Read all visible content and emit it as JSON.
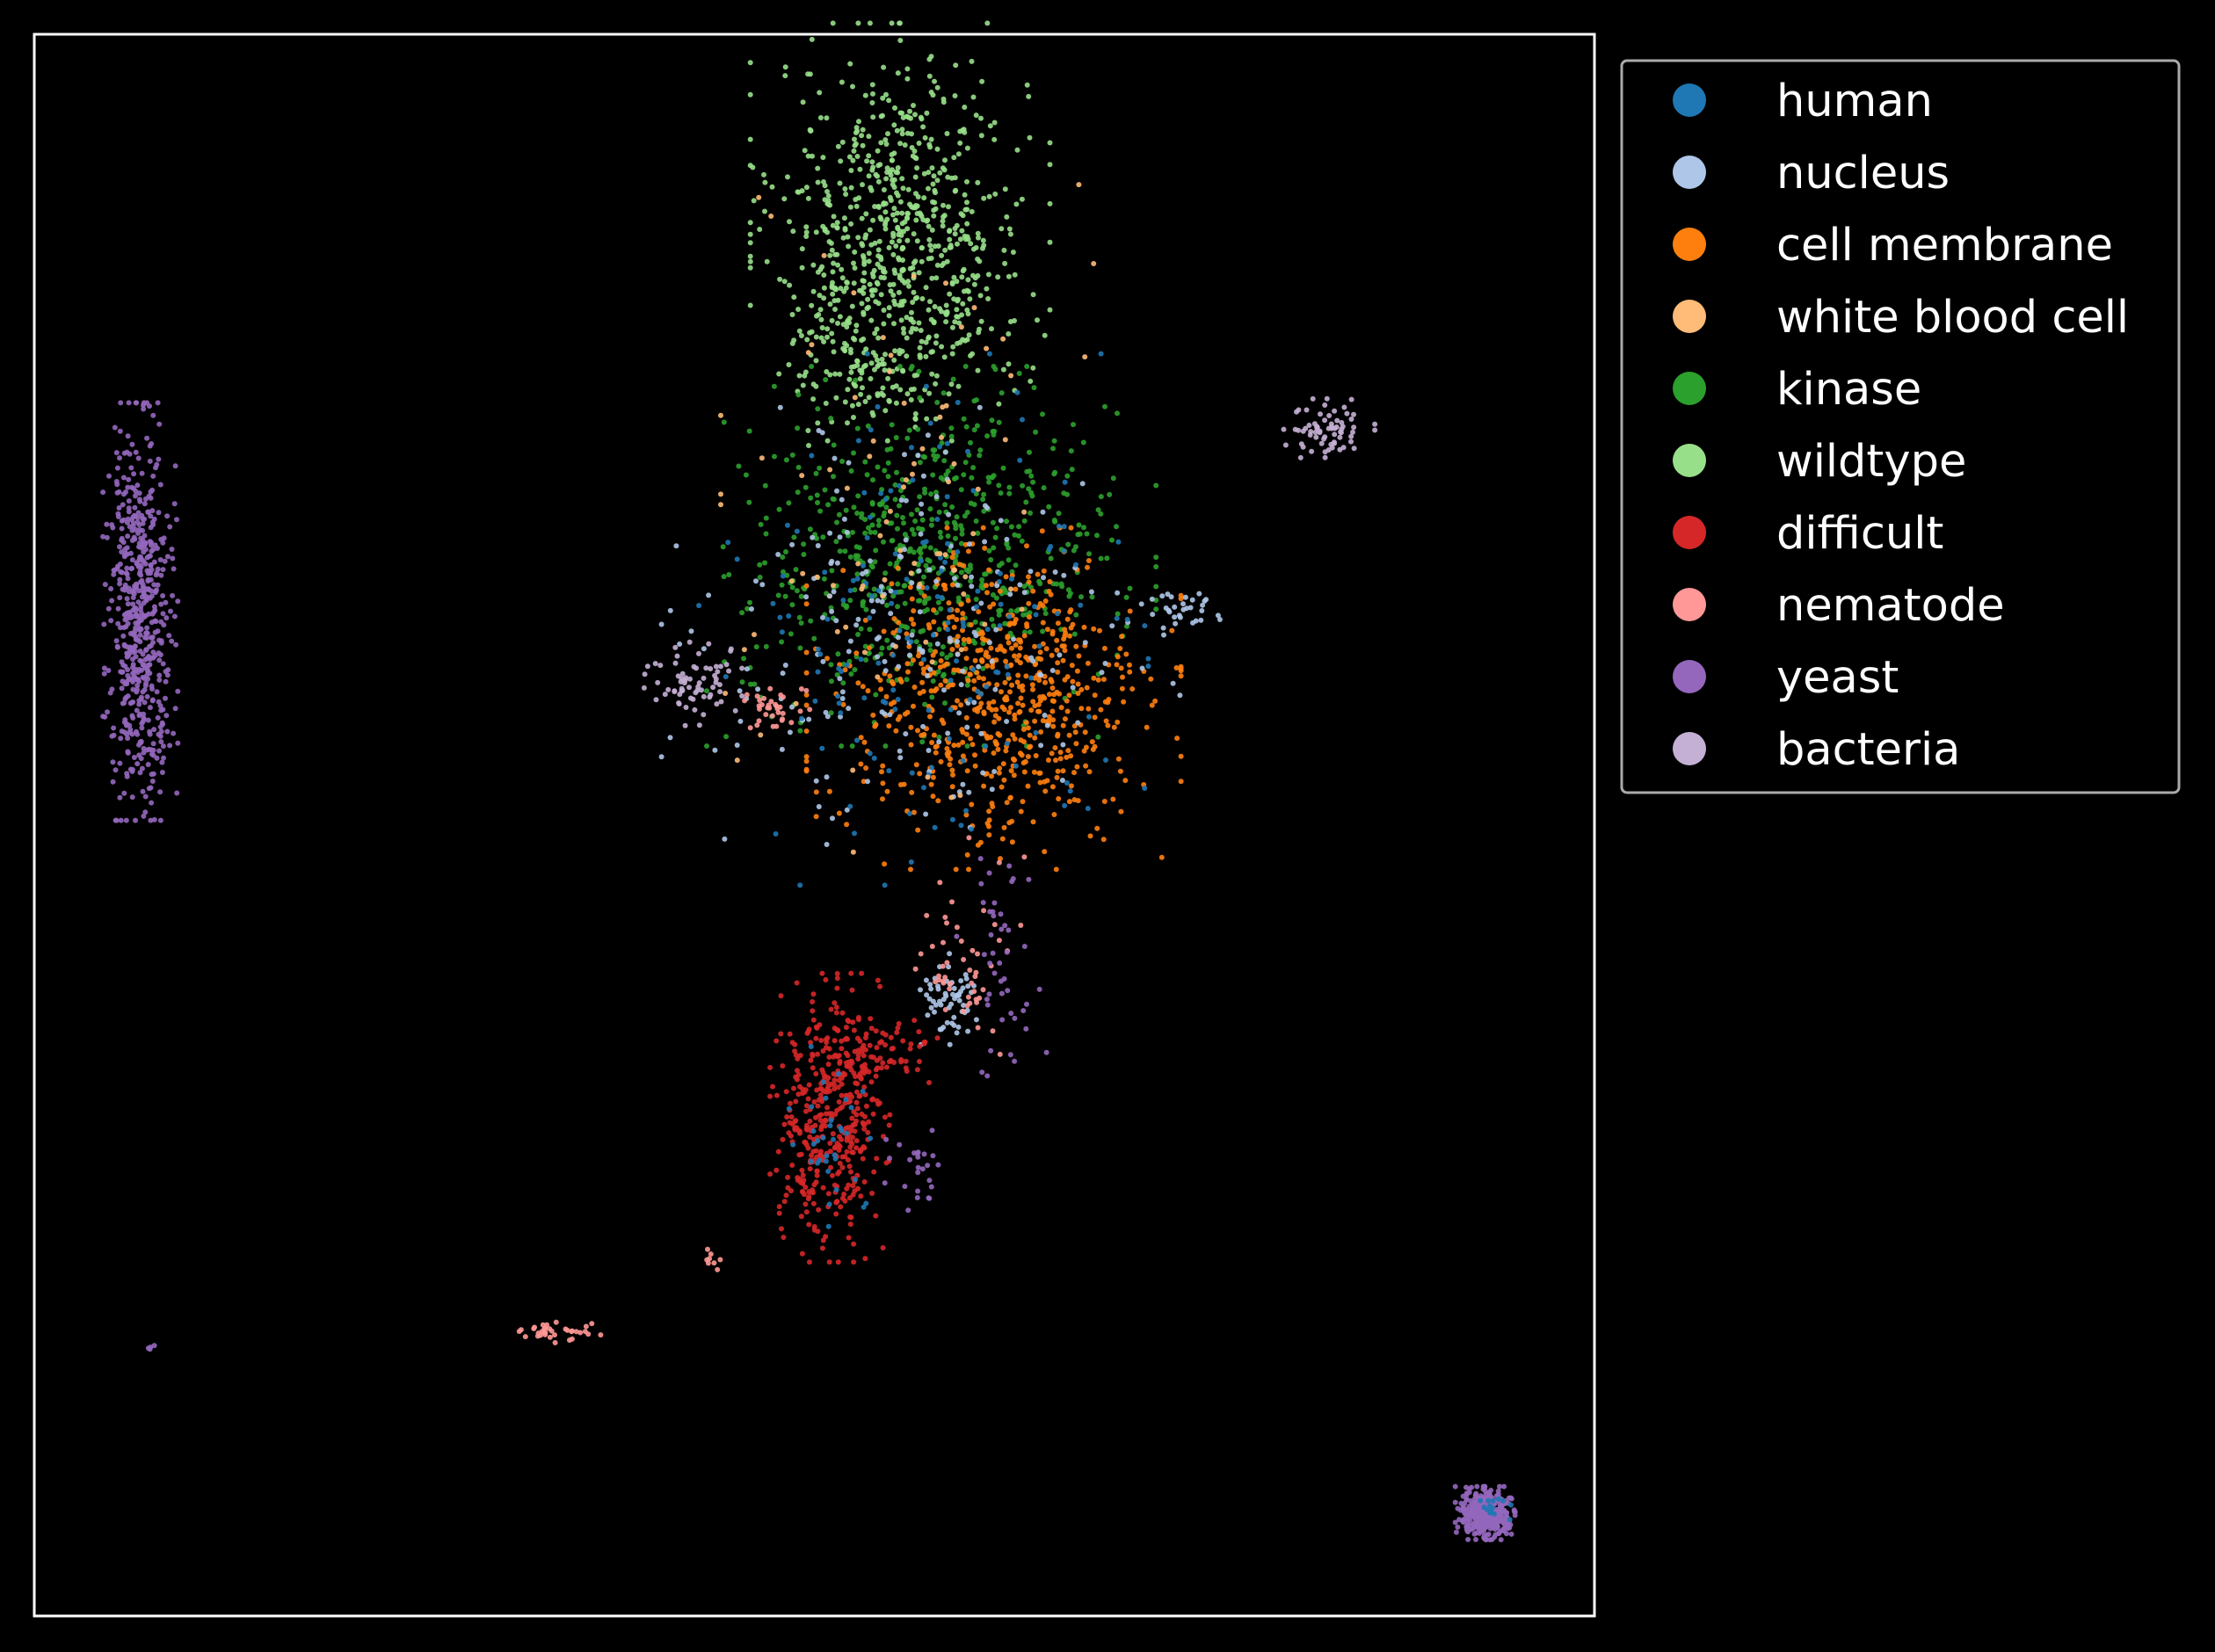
{
  "chart_data": {
    "type": "scatter",
    "title": "",
    "xlabel": "",
    "ylabel": "",
    "xlim": [
      0,
      100
    ],
    "ylim": [
      0,
      100
    ],
    "grid": false,
    "ticks": false,
    "background": "#000000",
    "frame_color": "#ffffff",
    "legend_placement": "outside-right-top",
    "series": [
      {
        "name": "human",
        "color": "#1f77b4"
      },
      {
        "name": "nucleus",
        "color": "#aec7e8"
      },
      {
        "name": "cell membrane",
        "color": "#ff7f0e"
      },
      {
        "name": "white blood cell",
        "color": "#ffbb78"
      },
      {
        "name": "kinase",
        "color": "#2ca02c"
      },
      {
        "name": "wildtype",
        "color": "#98df8a"
      },
      {
        "name": "difficult",
        "color": "#d62728"
      },
      {
        "name": "nematode",
        "color": "#ff9896"
      },
      {
        "name": "yeast",
        "color": "#9467bd"
      },
      {
        "name": "bacteria",
        "color": "#c5b0d5"
      }
    ],
    "clusters": [
      {
        "series": "wildtype",
        "cx": 55.5,
        "cy": 87.5,
        "sx": 4.0,
        "sy": 5.5,
        "n": 700
      },
      {
        "series": "wildtype",
        "cx": 53.5,
        "cy": 80.0,
        "sx": 2.5,
        "sy": 2.5,
        "n": 120
      },
      {
        "series": "kinase",
        "cx": 57.5,
        "cy": 67.0,
        "sx": 6.0,
        "sy": 5.0,
        "n": 650
      },
      {
        "series": "cell membrane",
        "cx": 61.5,
        "cy": 58.0,
        "sx": 5.0,
        "sy": 4.5,
        "n": 650
      },
      {
        "series": "nucleus",
        "cx": 57.0,
        "cy": 62.0,
        "sx": 7.0,
        "sy": 6.0,
        "n": 220
      },
      {
        "series": "human",
        "cx": 57.0,
        "cy": 63.0,
        "sx": 6.0,
        "sy": 7.0,
        "n": 170
      },
      {
        "series": "white blood cell",
        "cx": 56.0,
        "cy": 70.0,
        "sx": 5.0,
        "sy": 10.0,
        "n": 90
      },
      {
        "series": "bacteria",
        "cx": 42.0,
        "cy": 59.0,
        "sx": 1.4,
        "sy": 1.2,
        "n": 70
      },
      {
        "series": "nematode",
        "cx": 47.3,
        "cy": 57.7,
        "sx": 1.0,
        "sy": 0.8,
        "n": 35
      },
      {
        "series": "nucleus",
        "cx": 73.5,
        "cy": 63.5,
        "sx": 1.2,
        "sy": 0.8,
        "n": 30
      },
      {
        "series": "nucleus",
        "cx": 58.5,
        "cy": 39.0,
        "sx": 1.0,
        "sy": 1.2,
        "n": 60
      },
      {
        "series": "nematode",
        "cx": 60.0,
        "cy": 42.0,
        "sx": 1.5,
        "sy": 3.0,
        "n": 50
      },
      {
        "series": "yeast",
        "cx": 62.0,
        "cy": 41.0,
        "sx": 1.2,
        "sy": 4.0,
        "n": 45
      },
      {
        "series": "difficult",
        "cx": 51.0,
        "cy": 31.5,
        "sx": 1.6,
        "sy": 3.8,
        "n": 420
      },
      {
        "series": "difficult",
        "cx": 54.0,
        "cy": 35.5,
        "sx": 2.2,
        "sy": 0.9,
        "n": 70
      },
      {
        "series": "human",
        "cx": 51.5,
        "cy": 30.0,
        "sx": 1.3,
        "sy": 2.5,
        "n": 35
      },
      {
        "series": "yeast",
        "cx": 56.5,
        "cy": 28.0,
        "sx": 1.0,
        "sy": 1.5,
        "n": 25
      },
      {
        "series": "yeast",
        "cx": 6.8,
        "cy": 63.5,
        "sx": 1.0,
        "sy": 5.5,
        "n": 600
      },
      {
        "series": "bacteria",
        "cx": 82.8,
        "cy": 75.0,
        "sx": 1.3,
        "sy": 0.9,
        "n": 70
      },
      {
        "series": "yeast",
        "cx": 93.0,
        "cy": 6.5,
        "sx": 0.8,
        "sy": 0.7,
        "n": 400
      },
      {
        "series": "human",
        "cx": 93.5,
        "cy": 7.0,
        "sx": 0.5,
        "sy": 0.5,
        "n": 15
      },
      {
        "series": "nematode",
        "cx": 33.5,
        "cy": 18.0,
        "sx": 1.2,
        "sy": 0.3,
        "n": 35
      },
      {
        "series": "nematode",
        "cx": 43.5,
        "cy": 22.5,
        "sx": 0.3,
        "sy": 0.4,
        "n": 8
      },
      {
        "series": "yeast",
        "cx": 7.5,
        "cy": 17.0,
        "sx": 0.15,
        "sy": 0.15,
        "n": 4
      }
    ]
  }
}
